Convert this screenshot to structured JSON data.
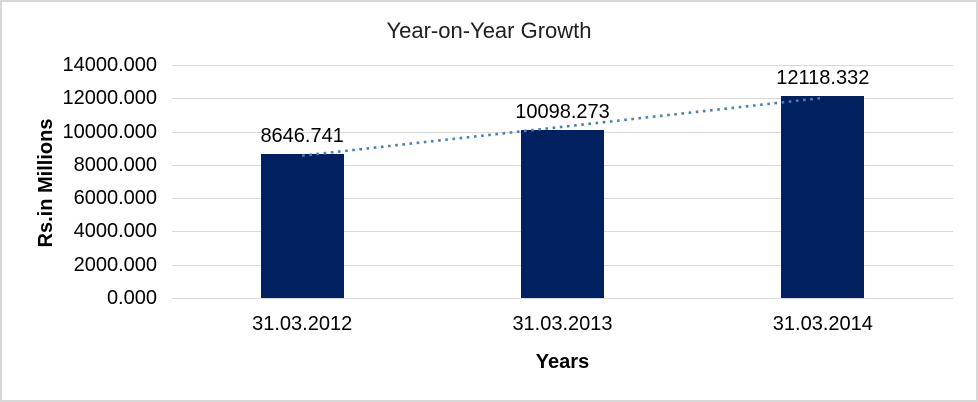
{
  "frame": {
    "background": "#ffffff",
    "border_color": "#d7d7d7"
  },
  "chart_data": {
    "type": "bar",
    "title": "Year-on-Year Growth",
    "xlabel": "Years",
    "ylabel": "Rs.in Millions",
    "categories": [
      "31.03.2012",
      "31.03.2013",
      "31.03.2014"
    ],
    "values": [
      8646.741,
      10098.273,
      12118.332
    ],
    "data_labels": [
      "8646.741",
      "10098.273",
      "12118.332"
    ],
    "ylim": [
      0,
      14000
    ],
    "ytick_step": 2000,
    "ytick_labels": [
      "0.000",
      "2000.000",
      "4000.000",
      "6000.000",
      "8000.000",
      "10000.000",
      "12000.000",
      "14000.000"
    ],
    "grid": true,
    "legend": "none",
    "bar_color": "#002060",
    "gridline_color": "#d9d9d9",
    "text_color": "#000000",
    "trendline": {
      "type": "linear",
      "style": "dotted",
      "color": "#4a7ebb"
    }
  }
}
